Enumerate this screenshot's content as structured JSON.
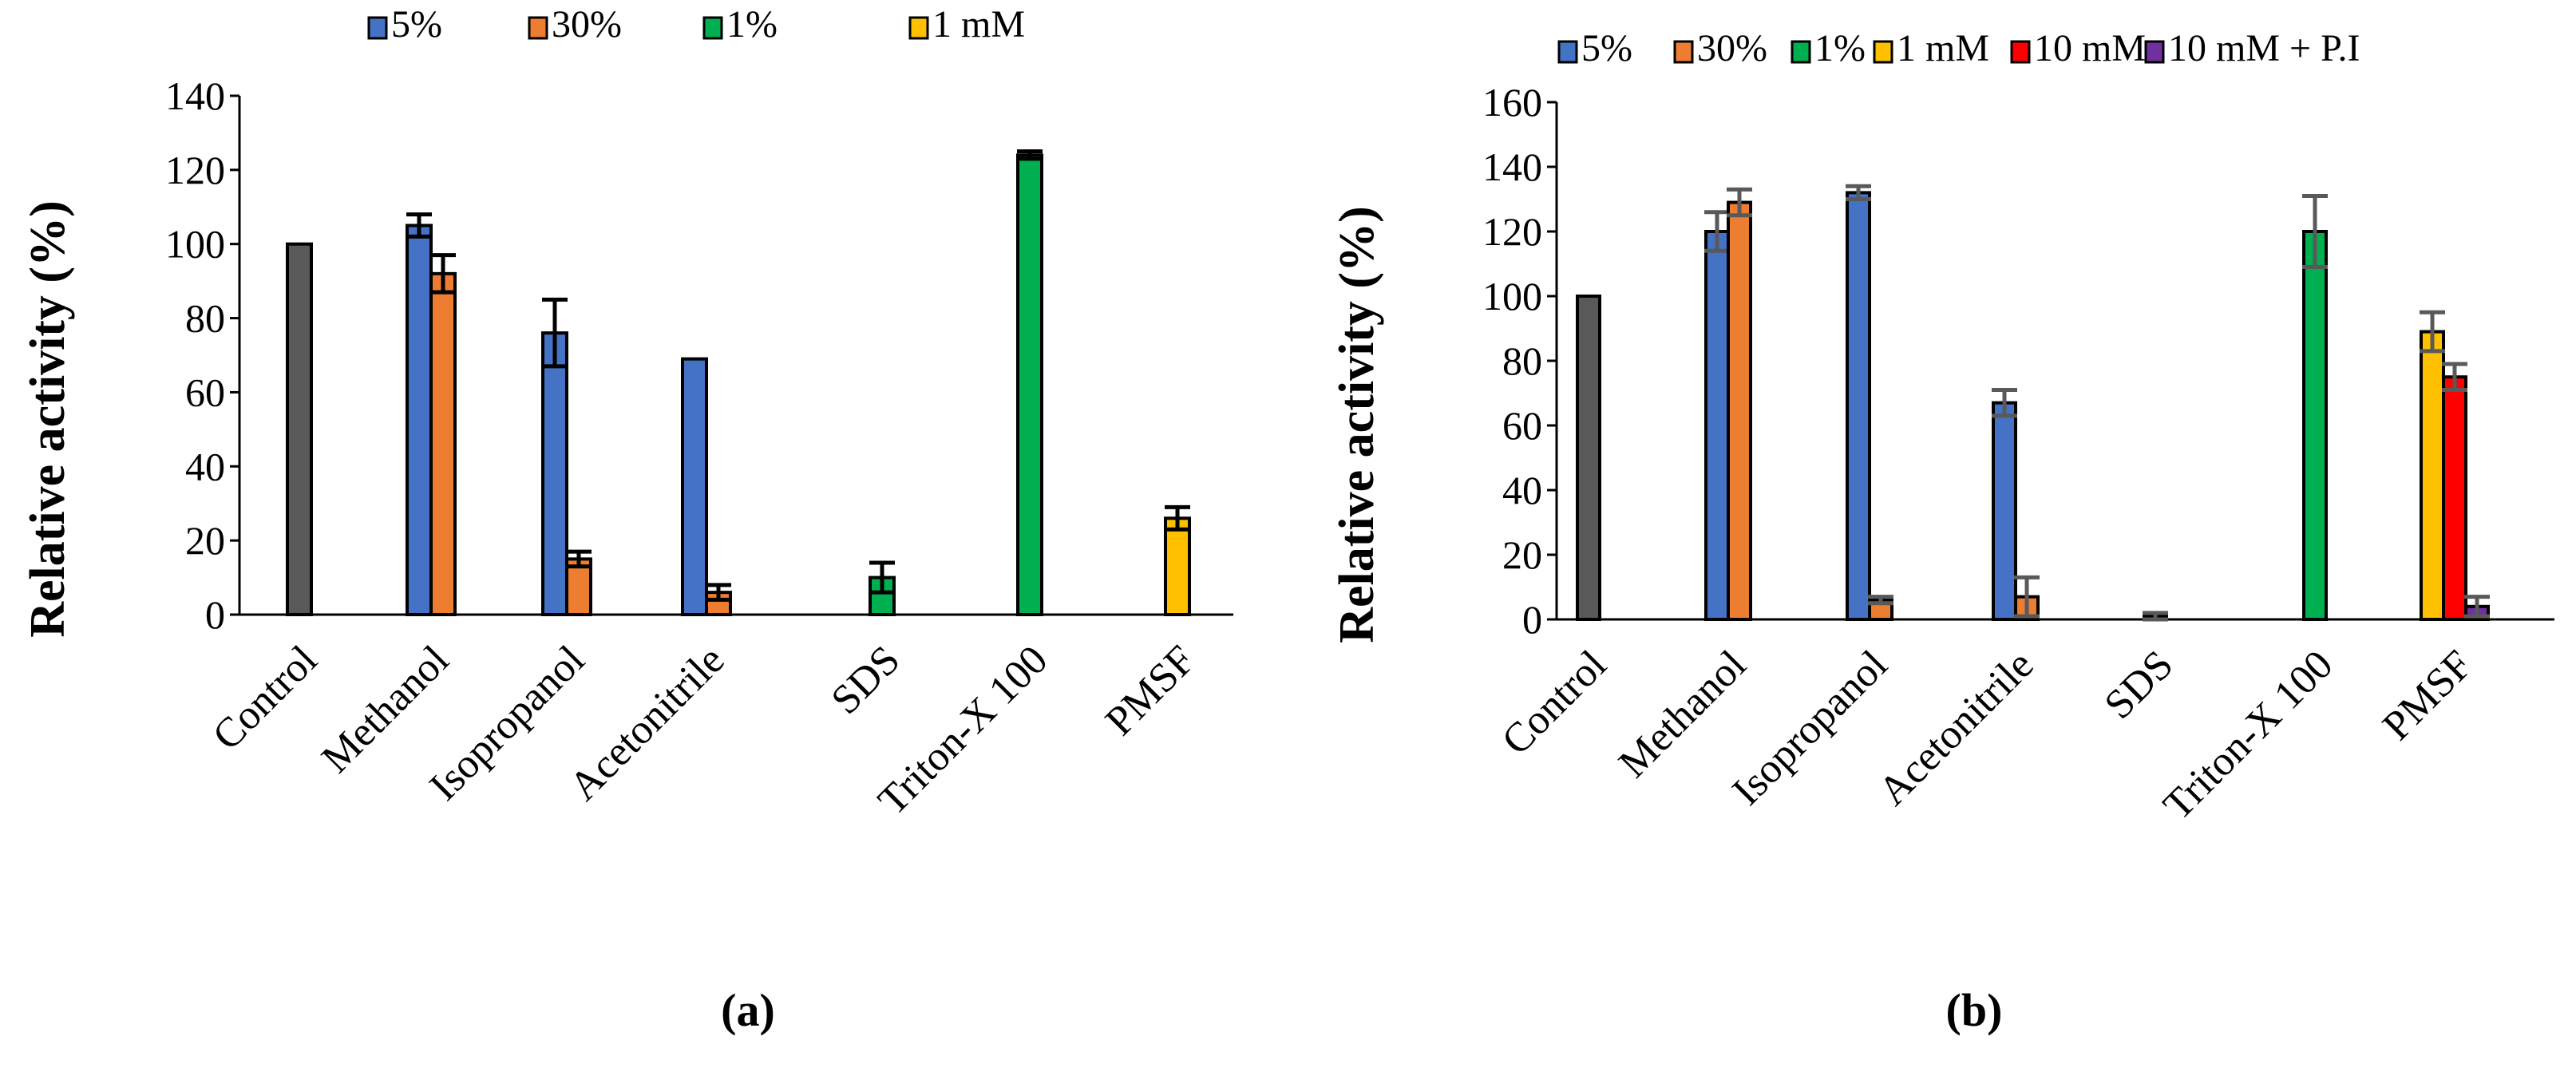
{
  "figure": {
    "panels": [
      {
        "panel_label": "(a)",
        "legend": [
          {
            "label": "5%",
            "color": "#4472C4"
          },
          {
            "label": "30%",
            "color": "#ED7D31"
          },
          {
            "label": "1%",
            "color": "#00B050"
          },
          {
            "label": "1 mM",
            "color": "#FFC000"
          }
        ]
      },
      {
        "panel_label": "(b)",
        "legend": [
          {
            "label": "5%",
            "color": "#4472C4"
          },
          {
            "label": "30%",
            "color": "#ED7D31"
          },
          {
            "label": "1%",
            "color": "#00B050"
          },
          {
            "label": "1 mM",
            "color": "#FFC000"
          },
          {
            "label": "10 mM",
            "color": "#FF0000"
          },
          {
            "label": "10 mM + P.I",
            "color": "#7030A0"
          }
        ]
      }
    ]
  },
  "chart_data": [
    {
      "type": "bar",
      "title": "",
      "xlabel": "",
      "ylabel": "Relative activity (%)",
      "ylim": [
        0,
        140
      ],
      "yticks": [
        0,
        20,
        40,
        60,
        80,
        100,
        120,
        140
      ],
      "grid": false,
      "legend_position": "top",
      "categories": [
        "Control",
        "Methanol",
        "Isopropanol",
        "Acetonitrile",
        "SDS",
        "Triton-X 100",
        "PMSF"
      ],
      "bars": [
        {
          "category": "Control",
          "series": "Control",
          "value": 100,
          "error": 0,
          "color": "#595959"
        },
        {
          "category": "Methanol",
          "series": "5%",
          "value": 105,
          "error": 3,
          "color": "#4472C4"
        },
        {
          "category": "Methanol",
          "series": "30%",
          "value": 92,
          "error": 5,
          "color": "#ED7D31"
        },
        {
          "category": "Isopropanol",
          "series": "5%",
          "value": 76,
          "error": 9,
          "color": "#4472C4"
        },
        {
          "category": "Isopropanol",
          "series": "30%",
          "value": 15,
          "error": 2,
          "color": "#ED7D31"
        },
        {
          "category": "Acetonitrile",
          "series": "5%",
          "value": 69,
          "error": 0,
          "color": "#4472C4"
        },
        {
          "category": "Acetonitrile",
          "series": "30%",
          "value": 6,
          "error": 2,
          "color": "#ED7D31"
        },
        {
          "category": "SDS",
          "series": "1%",
          "value": 10,
          "error": 4,
          "color": "#00B050"
        },
        {
          "category": "Triton-X 100",
          "series": "1%",
          "value": 124,
          "error": 1,
          "color": "#00B050"
        },
        {
          "category": "PMSF",
          "series": "1 mM",
          "value": 26,
          "error": 3,
          "color": "#FFC000"
        }
      ]
    },
    {
      "type": "bar",
      "title": "",
      "xlabel": "",
      "ylabel": "Relative activity (%)",
      "ylim": [
        0,
        160
      ],
      "yticks": [
        0,
        20,
        40,
        60,
        80,
        100,
        120,
        140,
        160
      ],
      "grid": false,
      "legend_position": "top",
      "categories": [
        "Control",
        "Methanol",
        "Isopropanol",
        "Acetonitrile",
        "SDS",
        "Triton-X 100",
        "PMSF"
      ],
      "bars": [
        {
          "category": "Control",
          "series": "Control",
          "value": 100,
          "error": 0,
          "color": "#595959"
        },
        {
          "category": "Methanol",
          "series": "5%",
          "value": 120,
          "error": 6,
          "color": "#4472C4"
        },
        {
          "category": "Methanol",
          "series": "30%",
          "value": 129,
          "error": 4,
          "color": "#ED7D31"
        },
        {
          "category": "Isopropanol",
          "series": "5%",
          "value": 132,
          "error": 2,
          "color": "#4472C4"
        },
        {
          "category": "Isopropanol",
          "series": "30%",
          "value": 6,
          "error": 1,
          "color": "#ED7D31"
        },
        {
          "category": "Acetonitrile",
          "series": "5%",
          "value": 67,
          "error": 4,
          "color": "#4472C4"
        },
        {
          "category": "Acetonitrile",
          "series": "30%",
          "value": 7,
          "error": 6,
          "color": "#ED7D31"
        },
        {
          "category": "SDS",
          "series": "1%",
          "value": 1,
          "error": 1,
          "color": "#00B050"
        },
        {
          "category": "Triton-X 100",
          "series": "1%",
          "value": 120,
          "error": 11,
          "color": "#00B050"
        },
        {
          "category": "PMSF",
          "series": "1 mM",
          "value": 89,
          "error": 6,
          "color": "#FFC000"
        },
        {
          "category": "PMSF",
          "series": "10 mM",
          "value": 75,
          "error": 4,
          "color": "#FF0000"
        },
        {
          "category": "PMSF",
          "series": "10 mM + P.I",
          "value": 4,
          "error": 3,
          "color": "#7030A0"
        }
      ]
    }
  ]
}
